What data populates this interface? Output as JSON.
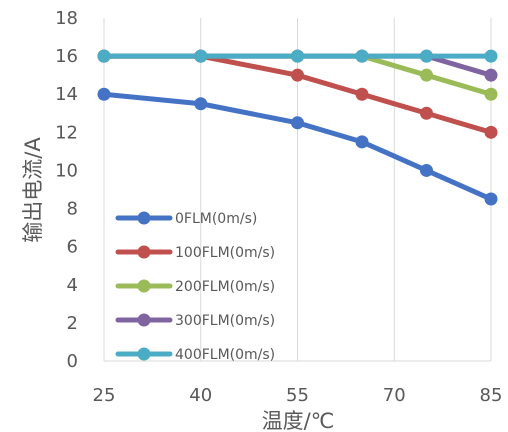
{
  "chart_data": {
    "type": "line",
    "xlabel": "温度/℃",
    "ylabel": "输出电流/A",
    "x_ticks": [
      "25",
      "40",
      "55",
      "70",
      "85"
    ],
    "y_ticks": [
      "0",
      "2",
      "4",
      "6",
      "8",
      "10",
      "12",
      "14",
      "16",
      "18"
    ],
    "xlim": [
      25,
      85
    ],
    "ylim": [
      0,
      18
    ],
    "grid": "vertical-lines",
    "legend_position": "inside-bottom-left",
    "x": [
      25,
      40,
      55,
      65,
      75,
      85
    ],
    "series": [
      {
        "name": "0FLM(0m/s)",
        "color": "#4472c4",
        "values": [
          14,
          13.5,
          12.5,
          11.5,
          10,
          8.5
        ]
      },
      {
        "name": "100FLM(0m/s)",
        "color": "#c0504d",
        "values": [
          16,
          16,
          15,
          14,
          13,
          12
        ]
      },
      {
        "name": "200FLM(0m/s)",
        "color": "#9bbb59",
        "values": [
          16,
          16,
          16,
          16,
          15,
          14
        ]
      },
      {
        "name": "300FLM(0m/s)",
        "color": "#8064a2",
        "values": [
          16,
          16,
          16,
          16,
          16,
          15
        ]
      },
      {
        "name": "400FLM(0m/s)",
        "color": "#4bacc6",
        "values": [
          16,
          16,
          16,
          16,
          16,
          16
        ]
      }
    ]
  }
}
